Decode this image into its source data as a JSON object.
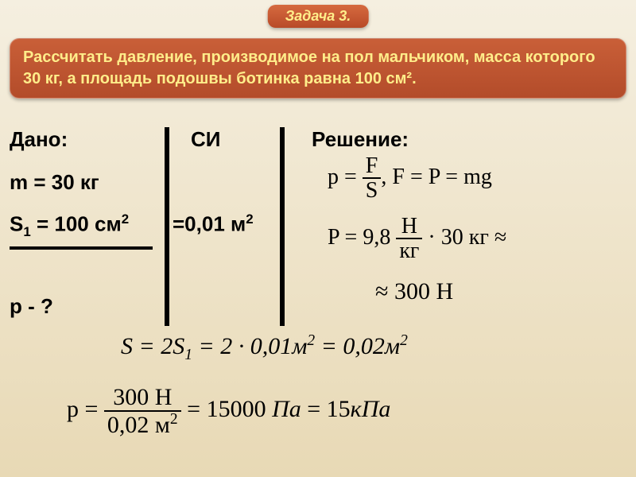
{
  "slide": {
    "background_gradient_top": "#f5efe0",
    "background_gradient_bottom": "#e8d9b5",
    "task_badge": {
      "text": "Задача 3.",
      "bg_top": "#d66a3f",
      "bg_bottom": "#b84a28",
      "text_color": "#ffed8a"
    },
    "problem": {
      "text": "Рассчитать давление, производимое на пол мальчиком, масса которого 30 кг, а площадь подошвы ботинка равна 100 см².",
      "bg_top": "#c95f38",
      "bg_bottom": "#b34c2a",
      "text_color": "#ffed8a"
    },
    "given": {
      "dano_label": "Дано:",
      "si_label": "СИ",
      "solution_label": "Решение:",
      "m_line": "m = 30 кг",
      "s_line_prefix": "S",
      "s_line_sub": "1",
      "s_line_rest": " = 100 см",
      "s_line_sup": "2",
      "si_conv_prefix": "=0,01 м",
      "si_conv_sup": "2",
      "p_line": "p - ?"
    },
    "formulas": {
      "f1_p": "p",
      "f1_eq": " = ",
      "f1_num": "F",
      "f1_den": "S",
      "f1_comma": ",   F = P = mg",
      "f2_P": "P = 9,8 ",
      "f2_num": "Н",
      "f2_den": "кг",
      "f2_rest": " · 30 кг ≈",
      "f3_text": "≈ 300 Н",
      "f4_S": "S",
      "f4_eq": " = 2",
      "f4_S1": "S",
      "f4_sub1": "1",
      "f4_mid": " = 2 · 0,01",
      "f4_m": "м",
      "f4_sup2a": "2",
      "f4_eq2": " = 0,02",
      "f4_m2": "м",
      "f4_sup2b": "2",
      "f5_p": "p = ",
      "f5_num": "300 Н",
      "f5_den_val": "0,02 м",
      "f5_den_sup": "2",
      "f5_mid": " = 15000 ",
      "f5_Pa": "Па",
      "f5_eq": " = 15",
      "f5_kPa": "кПа"
    }
  }
}
